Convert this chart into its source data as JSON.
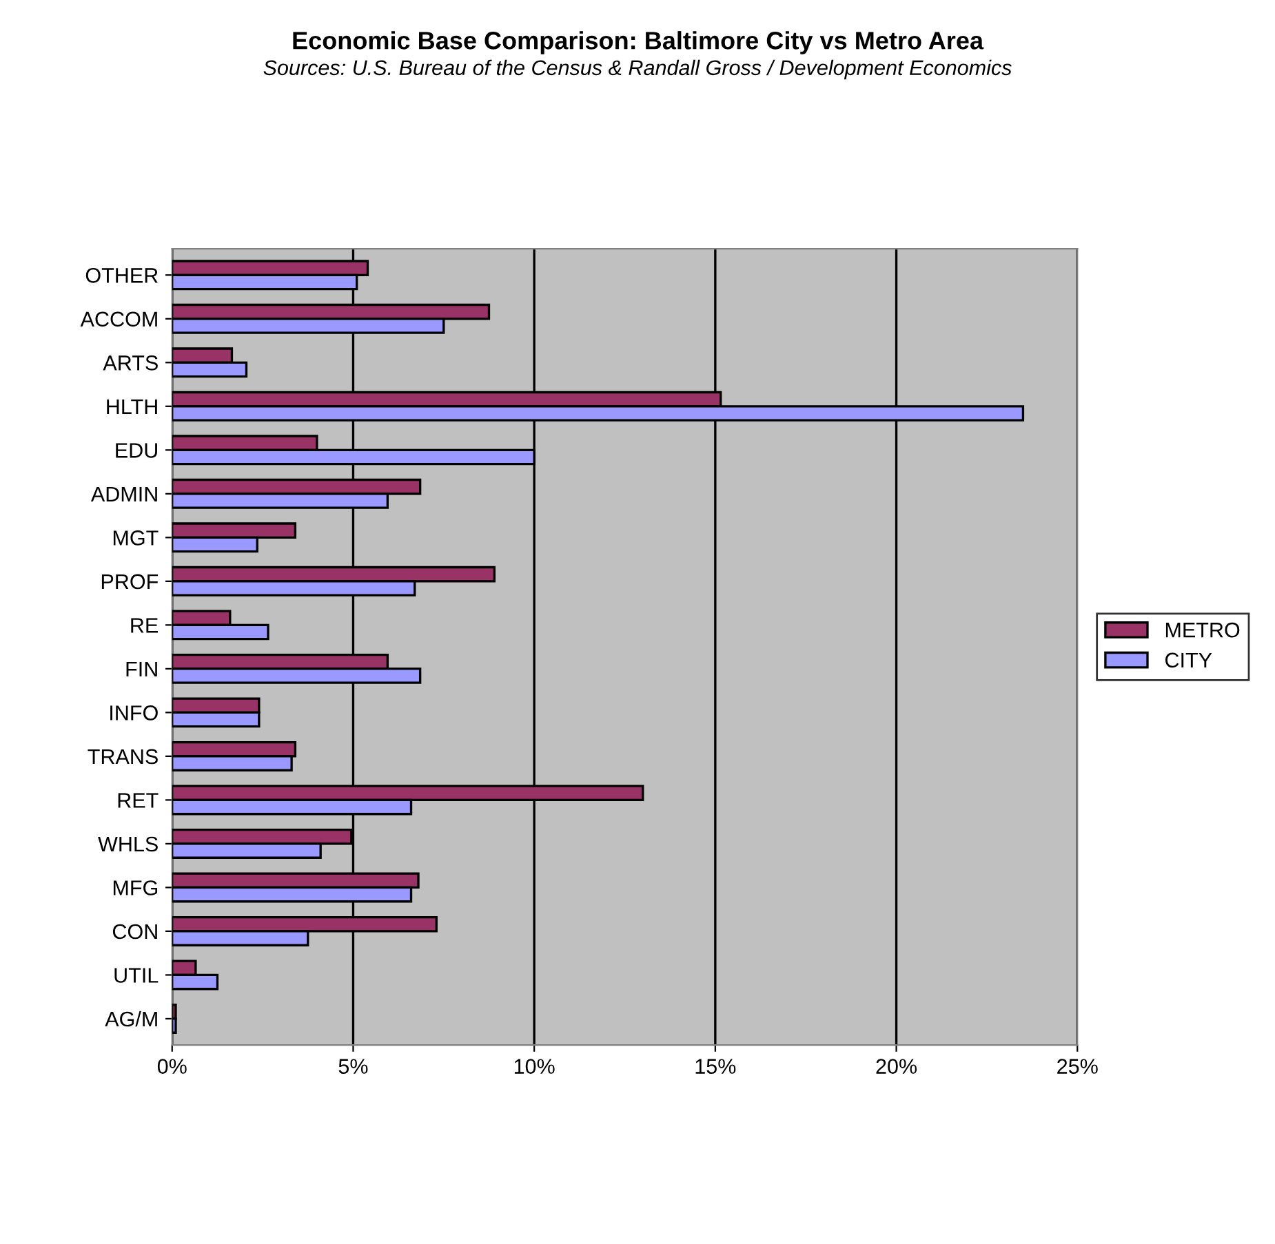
{
  "chart_data": {
    "type": "bar",
    "orientation": "horizontal",
    "title": "Economic Base Comparison: Baltimore City vs Metro Area",
    "subtitle": "Sources: U.S. Bureau of the Census & Randall Gross / Development Economics",
    "categories": [
      "OTHER",
      "ACCOM",
      "ARTS",
      "HLTH",
      "EDU",
      "ADMIN",
      "MGT",
      "PROF",
      "RE",
      "FIN",
      "INFO",
      "TRANS",
      "RET",
      "WHLS",
      "MFG",
      "CON",
      "UTIL",
      "AG/M"
    ],
    "series": [
      {
        "name": "METRO",
        "color": "#993366",
        "values": [
          5.4,
          8.75,
          1.65,
          15.15,
          4.0,
          6.85,
          3.4,
          8.9,
          1.6,
          5.95,
          2.4,
          3.4,
          13.0,
          4.95,
          6.8,
          7.3,
          0.65,
          0.1
        ]
      },
      {
        "name": "CITY",
        "color": "#9999ff",
        "values": [
          5.1,
          7.5,
          2.05,
          23.5,
          10.0,
          5.95,
          2.35,
          6.7,
          2.65,
          6.85,
          2.4,
          3.3,
          6.6,
          4.1,
          6.6,
          3.75,
          1.25,
          0.1
        ]
      }
    ],
    "xlim": [
      0,
      25
    ],
    "xticks": [
      {
        "value": 0,
        "label": "0%"
      },
      {
        "value": 5,
        "label": "5%"
      },
      {
        "value": 10,
        "label": "10%"
      },
      {
        "value": 15,
        "label": "15%"
      },
      {
        "value": 20,
        "label": "20%"
      },
      {
        "value": 25,
        "label": "25%"
      }
    ],
    "grid": "x",
    "legend": "right"
  }
}
